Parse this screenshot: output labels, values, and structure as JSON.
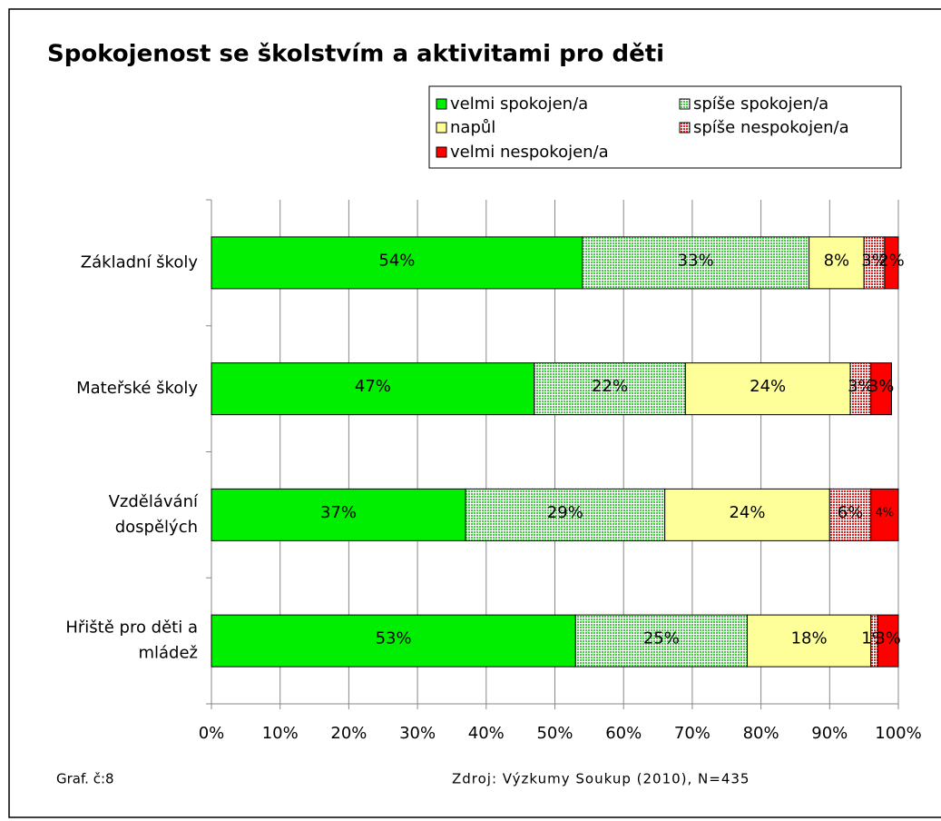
{
  "chart_data": {
    "type": "stacked_barh",
    "title": "Spokojenost se školstvím a aktivitami pro děti",
    "categories": [
      "Základní školy",
      "Mateřské školy",
      "Vzdělávání dospělých",
      "Hřiště pro děti a mládež"
    ],
    "series": [
      {
        "name": "velmi spokojen/a",
        "color": "#00ee00",
        "values": [
          54,
          47,
          37,
          53
        ],
        "value_labels": [
          "54%",
          "47%",
          "37%",
          "53%"
        ]
      },
      {
        "name": "spíše spokojen/a",
        "color": "#44cc44",
        "pattern": "dots",
        "values": [
          33,
          22,
          29,
          25
        ],
        "value_labels": [
          "33%",
          "22%",
          "29%",
          "25%"
        ]
      },
      {
        "name": "napůl",
        "color": "#ffff99",
        "values": [
          8,
          24,
          24,
          18
        ],
        "value_labels": [
          "8%",
          "24%",
          "24%",
          "18%"
        ]
      },
      {
        "name": "spíše nespokojen/a",
        "color": "#dd2222",
        "pattern": "dots",
        "values": [
          3,
          3,
          6,
          1
        ],
        "value_labels": [
          "3%",
          "3%",
          "6%",
          "1%"
        ]
      },
      {
        "name": "velmi nespokojen/a",
        "color": "#ff0000",
        "values": [
          2,
          3,
          4,
          3
        ],
        "value_labels": [
          "2%",
          "3%",
          "4%",
          "3%"
        ]
      }
    ],
    "xlim": [
      0,
      100
    ],
    "xticks": [
      {
        "value": 0,
        "label": "0%"
      },
      {
        "value": 10,
        "label": "10%"
      },
      {
        "value": 20,
        "label": "20%"
      },
      {
        "value": 30,
        "label": "30%"
      },
      {
        "value": 40,
        "label": "40%"
      },
      {
        "value": 50,
        "label": "50%"
      },
      {
        "value": 60,
        "label": "60%"
      },
      {
        "value": 70,
        "label": "70%"
      },
      {
        "value": 80,
        "label": "80%"
      },
      {
        "value": 90,
        "label": "90%"
      },
      {
        "value": 100,
        "label": "100%"
      }
    ],
    "grid": true,
    "legend": "top-right",
    "footnote": "Graf. č:8",
    "source": "Zdroj: Výzkumy Soukup (2010), N=435"
  }
}
